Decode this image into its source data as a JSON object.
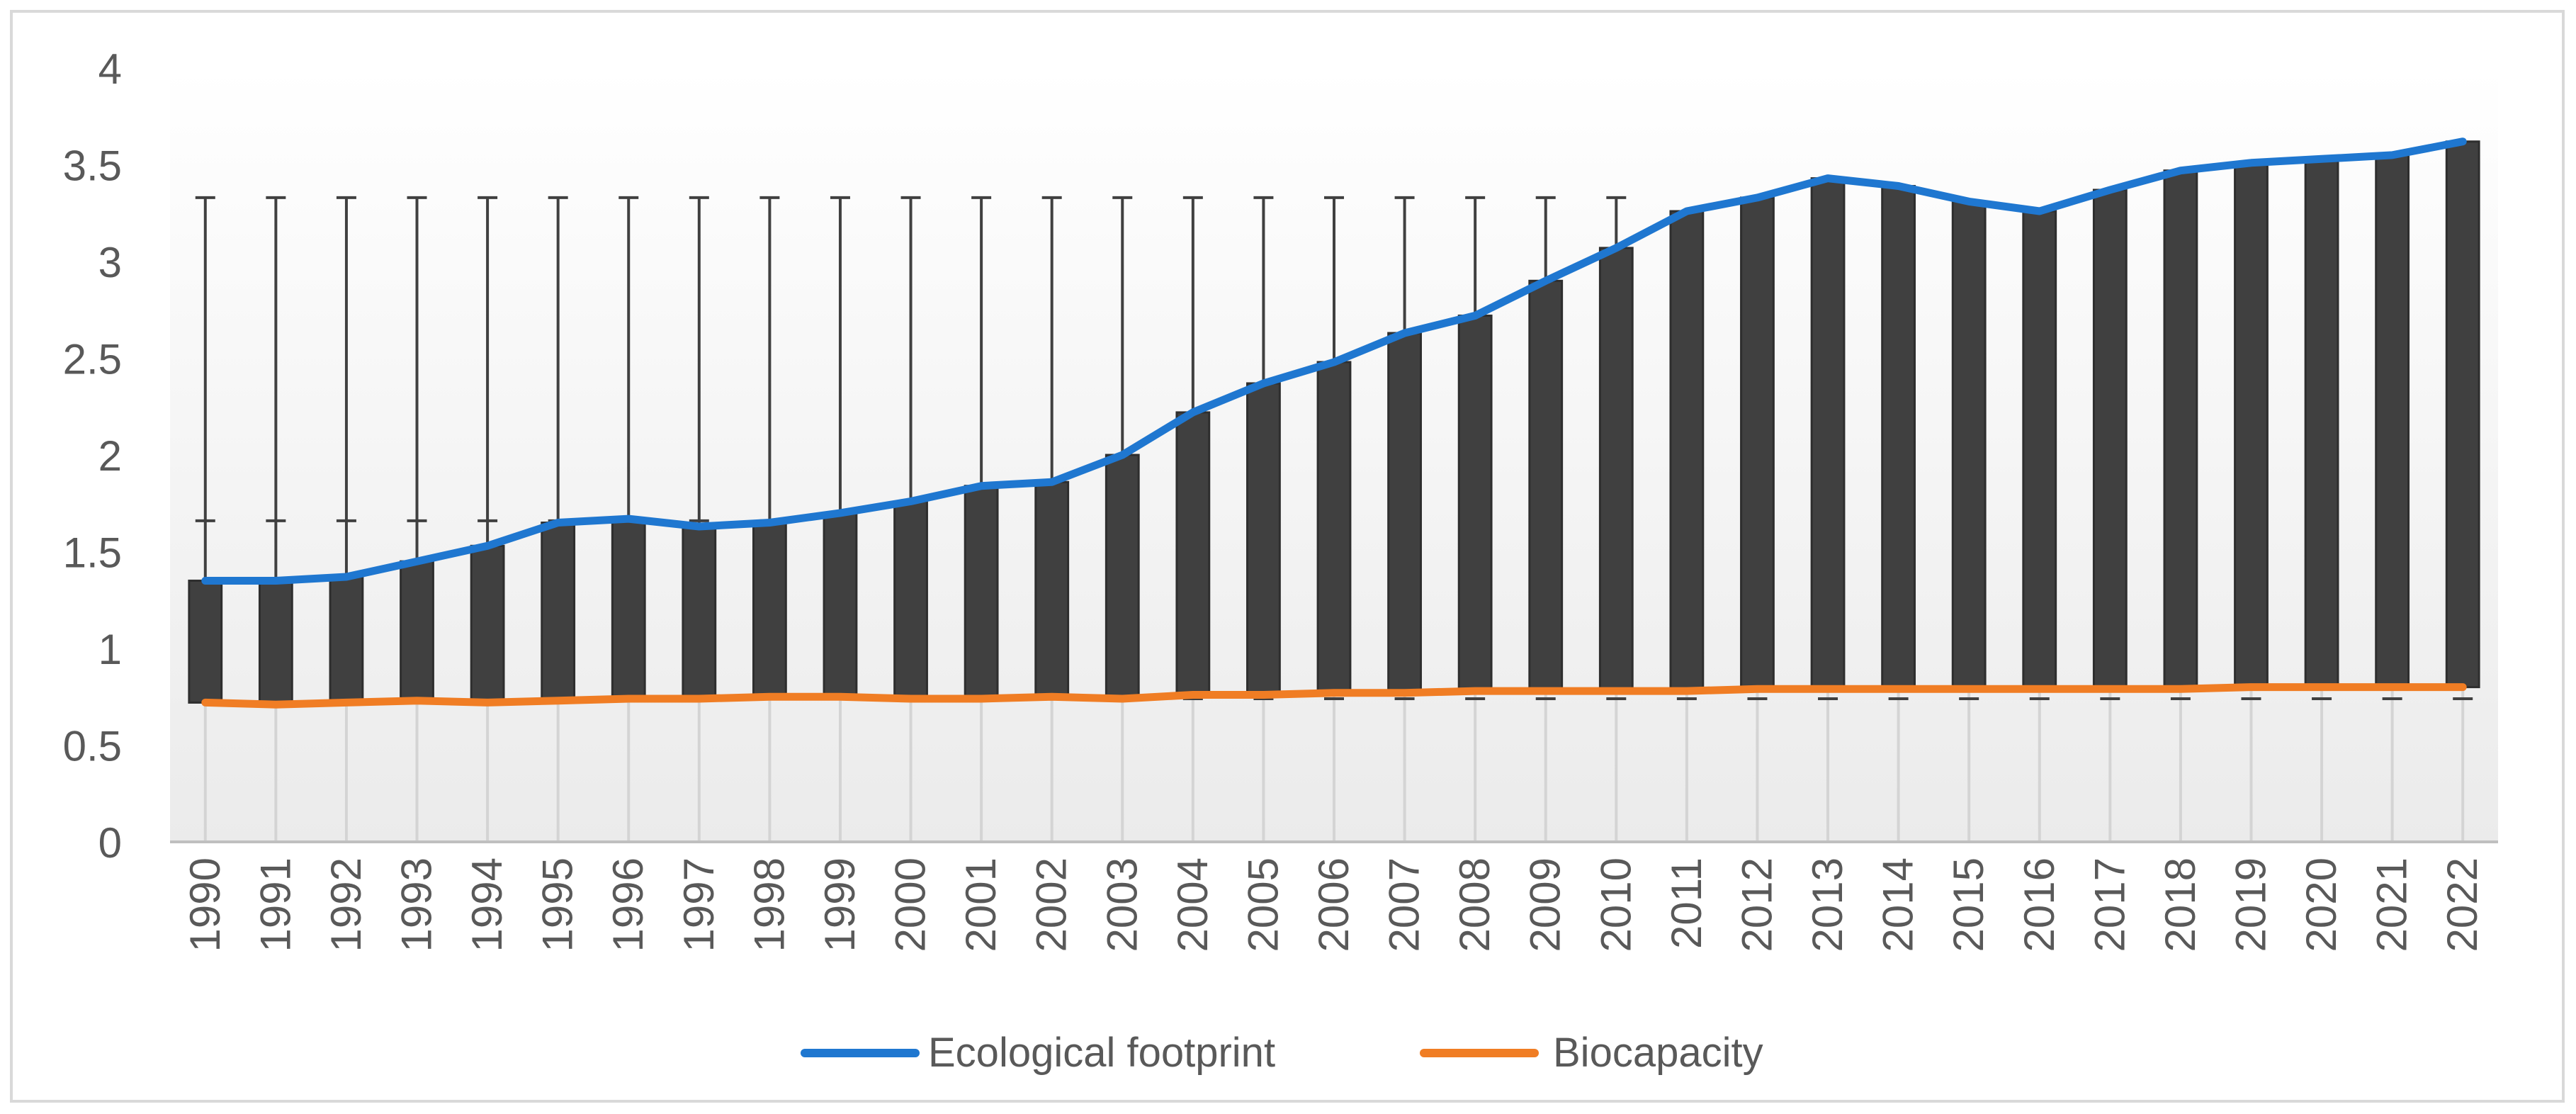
{
  "chart_data": {
    "type": "line",
    "title": "",
    "xlabel": "",
    "ylabel": "",
    "ylim": [
      0,
      4
    ],
    "yticks": [
      "0",
      "0.5",
      "1",
      "1.5",
      "2",
      "2.5",
      "3",
      "3.5",
      "4"
    ],
    "categories": [
      "1990",
      "1991",
      "1992",
      "1993",
      "1994",
      "1995",
      "1996",
      "1997",
      "1998",
      "1999",
      "2000",
      "2001",
      "2002",
      "2003",
      "2004",
      "2005",
      "2006",
      "2007",
      "2008",
      "2009",
      "2010",
      "2011",
      "2012",
      "2013",
      "2014",
      "2015",
      "2016",
      "2017",
      "2018",
      "2019",
      "2020",
      "2021",
      "2022"
    ],
    "series": [
      {
        "name": "Ecological footprint",
        "color": "#1f77d0",
        "values": [
          1.35,
          1.35,
          1.37,
          1.45,
          1.53,
          1.65,
          1.67,
          1.63,
          1.65,
          1.7,
          1.76,
          1.84,
          1.86,
          2.0,
          2.22,
          2.37,
          2.48,
          2.63,
          2.72,
          2.9,
          3.07,
          3.26,
          3.33,
          3.43,
          3.39,
          3.31,
          3.26,
          3.37,
          3.47,
          3.51,
          3.53,
          3.55,
          3.62
        ]
      },
      {
        "name": "Biocapacity",
        "color": "#f07d24",
        "values": [
          0.72,
          0.71,
          0.72,
          0.73,
          0.72,
          0.73,
          0.74,
          0.74,
          0.75,
          0.75,
          0.74,
          0.74,
          0.75,
          0.74,
          0.76,
          0.76,
          0.77,
          0.77,
          0.78,
          0.78,
          0.78,
          0.78,
          0.79,
          0.79,
          0.79,
          0.79,
          0.79,
          0.79,
          0.79,
          0.8,
          0.8,
          0.8,
          0.8
        ]
      }
    ],
    "high_low_bars": {
      "color": "#404040",
      "description": "dark bars span from Biocapacity to Ecological footprint for each year"
    },
    "error_bars": {
      "color": "#404040",
      "upper": 3.33,
      "lower": 1.66,
      "upper_years": [
        "1990",
        "1991",
        "1992",
        "1993",
        "1994",
        "1995",
        "1996",
        "1997",
        "1998",
        "1999",
        "2000",
        "2001",
        "2002",
        "2003",
        "2004",
        "2005",
        "2006",
        "2007",
        "2008",
        "2009",
        "2010"
      ]
    },
    "grid": true,
    "legend": {
      "position": "bottom",
      "items": [
        "Ecological footprint",
        "Biocapacity"
      ]
    }
  }
}
